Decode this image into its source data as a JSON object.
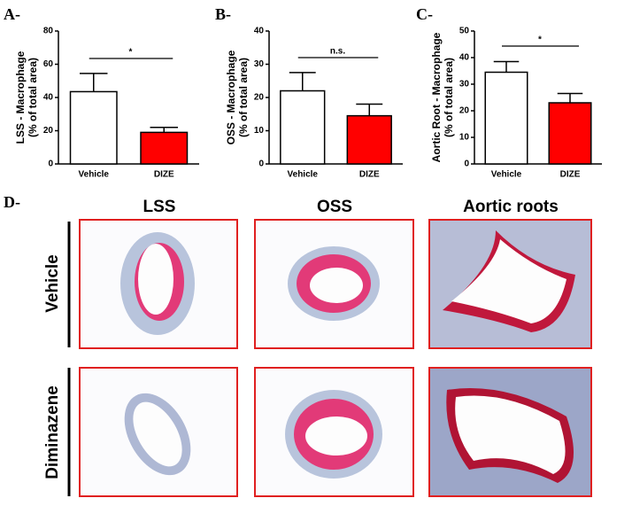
{
  "chart_data": [
    {
      "type": "bar",
      "panel": "A-",
      "ylabel": [
        "LSS - Macrophage",
        "(% of total area)"
      ],
      "categories": [
        "Vehicle",
        "DIZE"
      ],
      "values": [
        43.5,
        19
      ],
      "errors": [
        11,
        3
      ],
      "colors": [
        "#ffffff",
        "#ff0000"
      ],
      "ylim": [
        0,
        80
      ],
      "yticks": [
        0,
        20,
        40,
        60,
        80
      ],
      "significance": "*"
    },
    {
      "type": "bar",
      "panel": "B-",
      "ylabel": [
        "OSS - Macrophage",
        "(% of total area)"
      ],
      "categories": [
        "Vehicle",
        "DIZE"
      ],
      "values": [
        22,
        14.5
      ],
      "errors": [
        5.5,
        3.5
      ],
      "colors": [
        "#ffffff",
        "#ff0000"
      ],
      "ylim": [
        0,
        40
      ],
      "yticks": [
        0,
        10,
        20,
        30,
        40
      ],
      "significance": "n.s."
    },
    {
      "type": "bar",
      "panel": "C-",
      "ylabel": [
        "Aortic Root - Macrophage",
        "(% of total area)"
      ],
      "categories": [
        "Vehicle",
        "DIZE"
      ],
      "values": [
        34.5,
        23
      ],
      "errors": [
        4,
        3.5
      ],
      "colors": [
        "#ffffff",
        "#ff0000"
      ],
      "ylim": [
        0,
        50
      ],
      "yticks": [
        0,
        10,
        20,
        30,
        40,
        50
      ],
      "significance": "*"
    }
  ],
  "panel_d": {
    "label": "D-",
    "columns": [
      "LSS",
      "OSS",
      "Aortic roots"
    ],
    "rows": [
      "Vehicle",
      "Diminazene"
    ]
  }
}
